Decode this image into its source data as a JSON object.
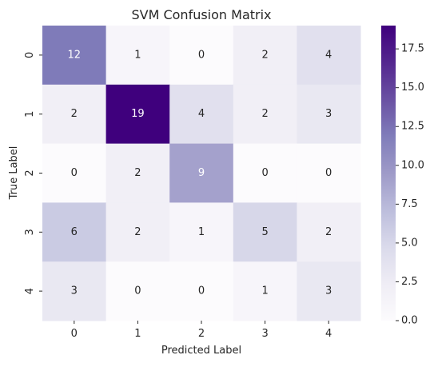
{
  "chart_data": {
    "type": "heatmap",
    "title": "SVM Confusion Matrix",
    "xlabel": "Predicted Label",
    "ylabel": "True Label",
    "x_categories": [
      "0",
      "1",
      "2",
      "3",
      "4"
    ],
    "y_categories": [
      "0",
      "1",
      "2",
      "3",
      "4"
    ],
    "values": [
      [
        12,
        1,
        0,
        2,
        4
      ],
      [
        2,
        19,
        4,
        2,
        3
      ],
      [
        0,
        2,
        9,
        0,
        0
      ],
      [
        6,
        2,
        1,
        5,
        2
      ],
      [
        3,
        0,
        0,
        1,
        3
      ]
    ],
    "colormap": "Purples",
    "colorbar": {
      "range": [
        0,
        19
      ],
      "ticks": [
        0.0,
        2.5,
        5.0,
        7.5,
        10.0,
        12.5,
        15.0,
        17.5
      ],
      "tick_labels": [
        "0.0",
        "2.5",
        "5.0",
        "7.5",
        "10.0",
        "12.5",
        "15.0",
        "17.5"
      ]
    },
    "annotations": true
  }
}
